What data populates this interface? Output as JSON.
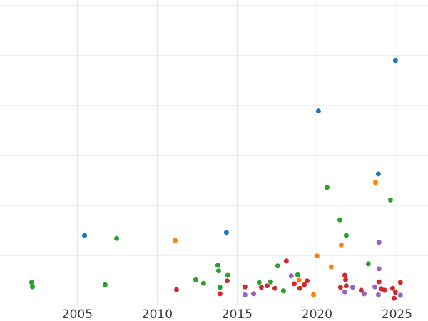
{
  "figure": {
    "background": "#ffffff",
    "grid_color": "#e8e8e8",
    "tick_label_color": "#3d3d3d"
  },
  "chart_data": {
    "type": "scatter",
    "title": "",
    "xlabel": "",
    "ylabel": "",
    "grid": true,
    "legend": "none",
    "x_tick_labels": [
      "2005",
      "2010",
      "2015",
      "2020",
      "2025"
    ],
    "x_tick_values": [
      2005,
      2010,
      2015,
      2020,
      2025
    ],
    "xlim": [
      2000.2,
      2027.0
    ],
    "ylim": [
      0,
      6.13
    ],
    "y_gridline_values": [
      1,
      2,
      3,
      4,
      5,
      6
    ],
    "y_tick_labels_visible": false,
    "marker_diameter_px": 7,
    "series": [
      {
        "name": "series-blue",
        "color": "#1f77b4",
        "points": [
          [
            2005.45,
            1.4
          ],
          [
            2014.33,
            1.46
          ],
          [
            2020.09,
            3.89
          ],
          [
            2023.84,
            2.63
          ],
          [
            2024.91,
            4.9
          ]
        ]
      },
      {
        "name": "series-orange",
        "color": "#ff7f0e",
        "points": [
          [
            2011.12,
            1.3
          ],
          [
            2018.88,
            0.5
          ],
          [
            2019.78,
            0.21
          ],
          [
            2020.0,
            0.99
          ],
          [
            2020.89,
            0.77
          ],
          [
            2021.52,
            1.21
          ],
          [
            2023.66,
            2.46
          ]
        ]
      },
      {
        "name": "series-green",
        "color": "#2ca02c",
        "points": [
          [
            2002.14,
            0.46
          ],
          [
            2002.19,
            0.37
          ],
          [
            2006.74,
            0.41
          ],
          [
            2007.46,
            1.34
          ],
          [
            2012.41,
            0.51
          ],
          [
            2012.9,
            0.44
          ],
          [
            2013.79,
            0.8
          ],
          [
            2013.84,
            0.69
          ],
          [
            2013.93,
            0.36
          ],
          [
            2014.42,
            0.6
          ],
          [
            2016.38,
            0.46
          ],
          [
            2017.1,
            0.47
          ],
          [
            2017.54,
            0.79
          ],
          [
            2017.9,
            0.29
          ],
          [
            2018.79,
            0.61
          ],
          [
            2020.63,
            2.36
          ],
          [
            2021.43,
            1.71
          ],
          [
            2021.83,
            1.4
          ],
          [
            2023.21,
            0.83
          ],
          [
            2024.6,
            2.11
          ]
        ]
      },
      {
        "name": "series-red",
        "color": "#d62728",
        "points": [
          [
            2011.21,
            0.31
          ],
          [
            2013.93,
            0.23
          ],
          [
            2014.38,
            0.49
          ],
          [
            2015.49,
            0.37
          ],
          [
            2016.52,
            0.36
          ],
          [
            2016.88,
            0.39
          ],
          [
            2017.37,
            0.34
          ],
          [
            2018.08,
            0.89
          ],
          [
            2018.57,
            0.43
          ],
          [
            2018.93,
            0.34
          ],
          [
            2019.2,
            0.41
          ],
          [
            2019.38,
            0.49
          ],
          [
            2021.47,
            0.36
          ],
          [
            2021.74,
            0.6
          ],
          [
            2021.79,
            0.51
          ],
          [
            2021.83,
            0.39
          ],
          [
            2022.77,
            0.3
          ],
          [
            2023.88,
            0.47
          ],
          [
            2024.02,
            0.33
          ],
          [
            2024.24,
            0.3
          ],
          [
            2024.73,
            0.34
          ],
          [
            2024.82,
            0.14
          ],
          [
            2024.91,
            0.26
          ],
          [
            2025.22,
            0.46
          ]
        ]
      },
      {
        "name": "series-purple",
        "color": "#9467bd",
        "points": [
          [
            2015.49,
            0.21
          ],
          [
            2016.03,
            0.23
          ],
          [
            2018.39,
            0.59
          ],
          [
            2021.74,
            0.27
          ],
          [
            2022.23,
            0.36
          ],
          [
            2022.95,
            0.23
          ],
          [
            2023.62,
            0.37
          ],
          [
            2023.84,
            0.21
          ],
          [
            2023.88,
            0.73
          ],
          [
            2023.88,
            1.26
          ],
          [
            2025.22,
            0.2
          ]
        ]
      }
    ]
  }
}
